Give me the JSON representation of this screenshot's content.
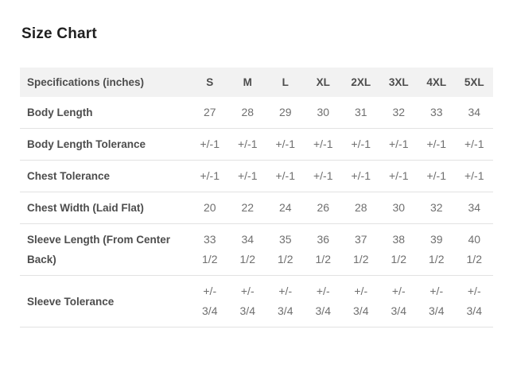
{
  "title": "Size Chart",
  "table": {
    "header": [
      "Specifications (inches)",
      "S",
      "M",
      "L",
      "XL",
      "2XL",
      "3XL",
      "4XL",
      "5XL"
    ],
    "rows": [
      {
        "label": "Body Length",
        "values": [
          "27",
          "28",
          "29",
          "30",
          "31",
          "32",
          "33",
          "34"
        ]
      },
      {
        "label": "Body Length Tolerance",
        "values": [
          "+/-1",
          "+/-1",
          "+/-1",
          "+/-1",
          "+/-1",
          "+/-1",
          "+/-1",
          "+/-1"
        ]
      },
      {
        "label": "Chest Tolerance",
        "values": [
          "+/-1",
          "+/-1",
          "+/-1",
          "+/-1",
          "+/-1",
          "+/-1",
          "+/-1",
          "+/-1"
        ]
      },
      {
        "label": "Chest Width (Laid Flat)",
        "values": [
          "20",
          "22",
          "24",
          "26",
          "28",
          "30",
          "32",
          "34"
        ]
      },
      {
        "label": "Sleeve Length (From Center Back)",
        "values": [
          "33\n1/2",
          "34\n1/2",
          "35\n1/2",
          "36\n1/2",
          "37\n1/2",
          "38\n1/2",
          "39\n1/2",
          "40\n1/2"
        ]
      },
      {
        "label": "Sleeve Tolerance",
        "values": [
          "+/-\n3/4",
          "+/-\n3/4",
          "+/-\n3/4",
          "+/-\n3/4",
          "+/-\n3/4",
          "+/-\n3/4",
          "+/-\n3/4",
          "+/-\n3/4"
        ]
      }
    ]
  },
  "colors": {
    "title_text": "#1f1f1f",
    "label_text": "#4d4d4d",
    "value_text": "#6f6f6f",
    "header_bg": "#f2f2f2",
    "border": "#e2e2e2"
  }
}
